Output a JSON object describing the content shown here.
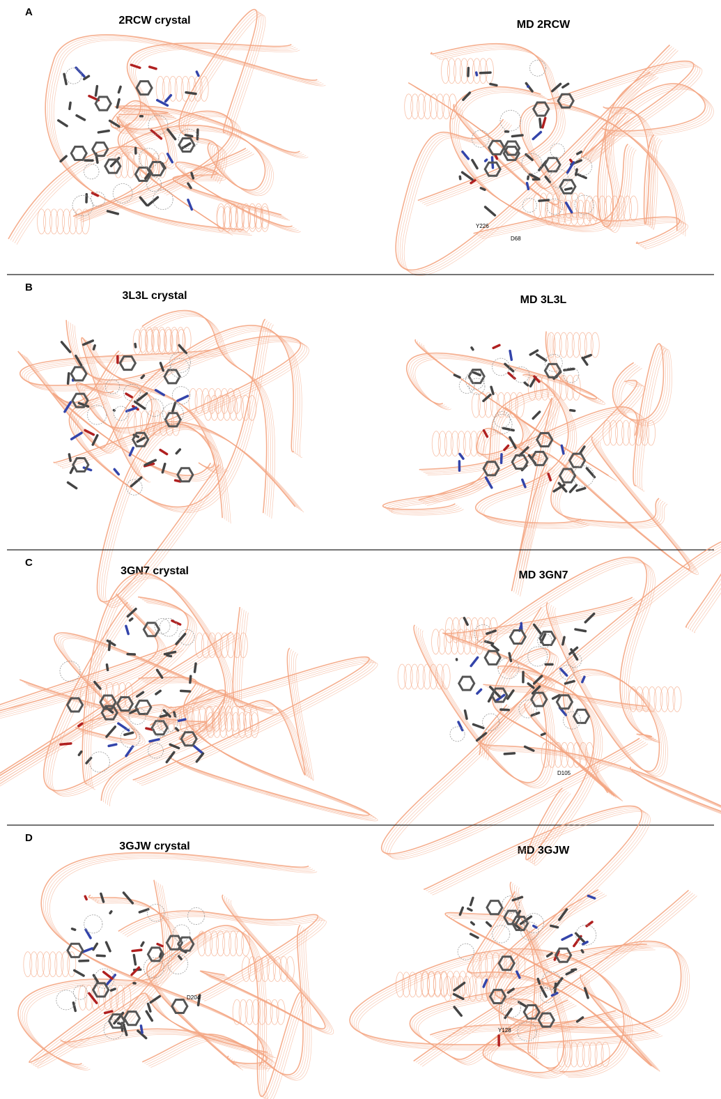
{
  "panels": [
    {
      "letter": "A",
      "left_title": "2RCW crystal",
      "right_title": "MD 2RCW",
      "annotations": [
        "Y226",
        "D68"
      ]
    },
    {
      "letter": "B",
      "left_title": "3L3L crystal",
      "right_title": "MD 3L3L",
      "annotations": []
    },
    {
      "letter": "C",
      "left_title": "3GN7 crystal",
      "right_title": "MD 3GN7",
      "annotations": [
        "D105"
      ]
    },
    {
      "letter": "D",
      "left_title": "3GJW crystal",
      "right_title": "MD 3GJW",
      "annotations": [
        "D204",
        "Y128"
      ]
    }
  ]
}
